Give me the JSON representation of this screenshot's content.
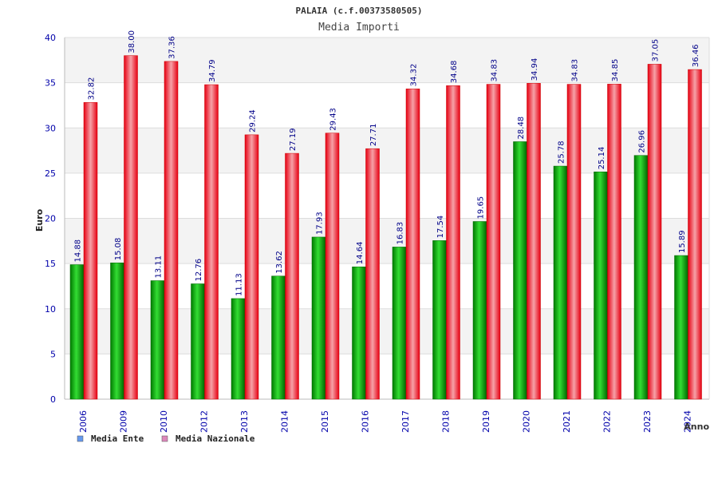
{
  "chart_data": {
    "type": "bar",
    "title": "PALAIA (c.f.00373580505)",
    "subtitle": "Media Importi",
    "xlabel": "Anno",
    "ylabel": "Euro",
    "ylim": [
      0,
      40
    ],
    "yticks": [
      "0",
      "5",
      "10",
      "15",
      "20",
      "25",
      "30",
      "35",
      "40"
    ],
    "categories": [
      "2006",
      "2009",
      "2010",
      "2012",
      "2013",
      "2014",
      "2015",
      "2016",
      "2017",
      "2018",
      "2019",
      "2020",
      "2021",
      "2022",
      "2023",
      "2024"
    ],
    "series": [
      {
        "name": "Media Ente",
        "color": "#00a000",
        "legend_color": "#6699ee",
        "values": [
          14.88,
          15.08,
          13.11,
          12.76,
          11.13,
          13.62,
          17.93,
          14.64,
          16.83,
          17.54,
          19.65,
          28.48,
          25.78,
          25.14,
          26.96,
          15.89
        ],
        "labels": [
          "14.88",
          "15.08",
          "13.11",
          "12.76",
          "11.13",
          "13.62",
          "17.93",
          "14.64",
          "16.83",
          "17.54",
          "19.65",
          "28.48",
          "25.78",
          "25.14",
          "26.96",
          "15.89"
        ]
      },
      {
        "name": "Media Nazionale",
        "color": "#ee0011",
        "legend_color": "#dd88bb",
        "values": [
          32.82,
          38.0,
          37.36,
          34.79,
          29.24,
          27.19,
          29.43,
          27.71,
          34.32,
          34.68,
          34.83,
          34.94,
          34.83,
          34.85,
          37.05,
          36.46
        ],
        "labels": [
          "32.82",
          "38.00",
          "37.36",
          "34.79",
          "29.24",
          "27.19",
          "29.43",
          "27.71",
          "34.32",
          "34.68",
          "34.83",
          "34.94",
          "34.83",
          "34.85",
          "37.05",
          "36.46"
        ]
      }
    ],
    "legend_position": "bottom-left",
    "grid": true
  }
}
